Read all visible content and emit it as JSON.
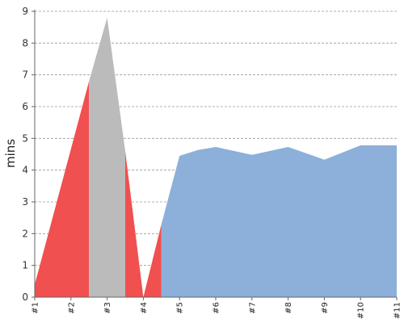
{
  "chart_data": {
    "type": "area",
    "title": "",
    "xlabel": "",
    "ylabel": "mins",
    "x": [
      "#1",
      "#2",
      "#3",
      "#4",
      "#5",
      "#6",
      "#7",
      "#8",
      "#9",
      "#10",
      "#11"
    ],
    "ylim": [
      0,
      9
    ],
    "yticks": [
      0,
      1,
      2,
      3,
      4,
      5,
      6,
      7,
      8,
      9
    ],
    "grid": true,
    "legend": "none",
    "colors": {
      "red": "#f05050",
      "gray": "#bbbbbb",
      "blue": "#8db0da",
      "grid": "#999999",
      "axis": "#666666"
    },
    "series": [
      {
        "color": "red",
        "points": [
          [
            1.0,
            0.4
          ],
          [
            2.5,
            6.8
          ],
          [
            2.5,
            0
          ],
          [
            1.0,
            0
          ]
        ]
      },
      {
        "color": "gray",
        "points": [
          [
            2.5,
            6.8
          ],
          [
            3.0,
            8.8
          ],
          [
            3.5,
            4.6
          ],
          [
            3.5,
            0
          ],
          [
            2.5,
            0
          ]
        ]
      },
      {
        "color": "red",
        "points": [
          [
            3.5,
            4.6
          ],
          [
            4.0,
            0
          ],
          [
            3.5,
            0
          ]
        ]
      },
      {
        "color": "red",
        "points": [
          [
            4.0,
            0
          ],
          [
            4.5,
            2.3
          ],
          [
            4.5,
            0
          ]
        ]
      },
      {
        "color": "blue",
        "points": [
          [
            4.5,
            2.3
          ],
          [
            5.0,
            4.45
          ],
          [
            5.5,
            4.63
          ],
          [
            6.0,
            4.73
          ],
          [
            7.0,
            4.48
          ],
          [
            8.0,
            4.73
          ],
          [
            9.0,
            4.33
          ],
          [
            10.0,
            4.78
          ],
          [
            11.0,
            4.78
          ],
          [
            11.0,
            0
          ],
          [
            4.5,
            0
          ]
        ]
      }
    ]
  }
}
